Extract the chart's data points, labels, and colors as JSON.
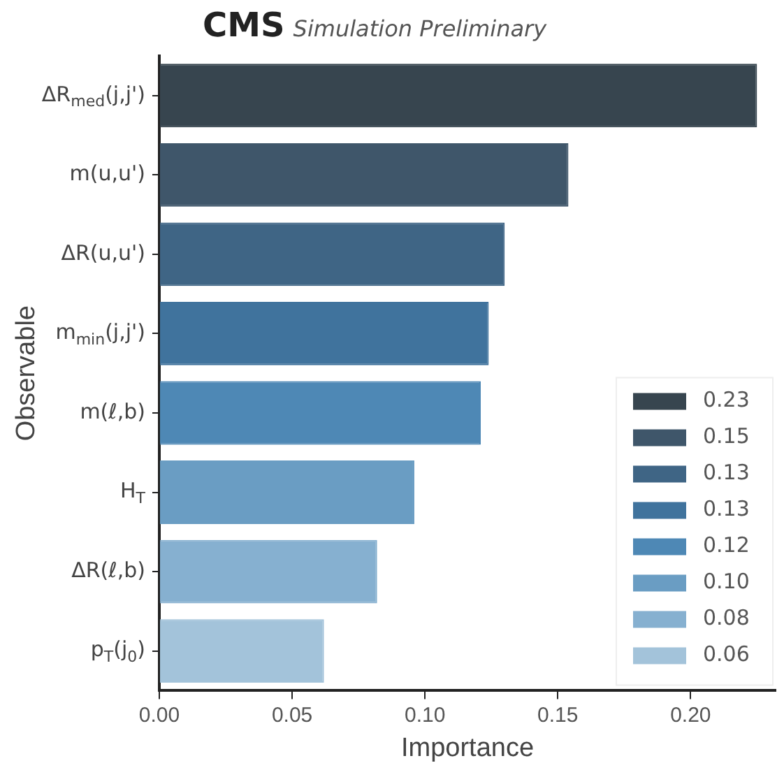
{
  "chart_data": {
    "type": "bar",
    "orientation": "horizontal",
    "stacked": true,
    "title": "CMS",
    "subtitle": "Simulation Preliminary",
    "xlabel": "Importance",
    "ylabel": "Observable",
    "categories": [
      "ΔR$_{med}$(j,j')",
      "m(u,u')",
      "ΔR(u,u')",
      "m$_{min}$(j,j')",
      "m(ℓ,b)",
      "H$_{T}$",
      "ΔR(ℓ,b)",
      "p$_{T}$(j$_{0}$)"
    ],
    "series": [
      {
        "name": "0.23",
        "color": "#37454f",
        "values": [
          0.225,
          null,
          null,
          null,
          null,
          null,
          null,
          null
        ]
      },
      {
        "name": "0.15",
        "color": "#3f566a",
        "values": [
          null,
          0.154,
          null,
          null,
          null,
          null,
          null,
          null
        ]
      },
      {
        "name": "0.13",
        "color": "#3f6585",
        "values": [
          null,
          null,
          0.13,
          null,
          null,
          null,
          null,
          null
        ]
      },
      {
        "name": "0.13",
        "color": "#40739d",
        "values": [
          null,
          null,
          null,
          0.124,
          null,
          null,
          null,
          null
        ]
      },
      {
        "name": "0.12",
        "color": "#4e88b5",
        "values": [
          null,
          null,
          null,
          null,
          0.121,
          null,
          null,
          null
        ]
      },
      {
        "name": "0.10",
        "color": "#6a9dc3",
        "values": [
          null,
          null,
          null,
          null,
          null,
          0.096,
          null,
          null
        ]
      },
      {
        "name": "0.08",
        "color": "#86b0d0",
        "values": [
          null,
          null,
          null,
          null,
          null,
          null,
          0.082,
          null
        ]
      },
      {
        "name": "0.06",
        "color": "#a3c3da",
        "values": [
          null,
          null,
          null,
          null,
          null,
          null,
          null,
          0.062
        ]
      }
    ],
    "xlim": [
      0,
      0.232
    ],
    "xticks": [
      {
        "value": 0,
        "label": "0.00"
      },
      {
        "value": 0.05,
        "label": "0.05"
      },
      {
        "value": 0.1,
        "label": "0.10"
      },
      {
        "value": 0.15,
        "label": "0.15"
      },
      {
        "value": 0.2,
        "label": "0.20"
      }
    ],
    "grid": false,
    "legend": "bottom right"
  }
}
